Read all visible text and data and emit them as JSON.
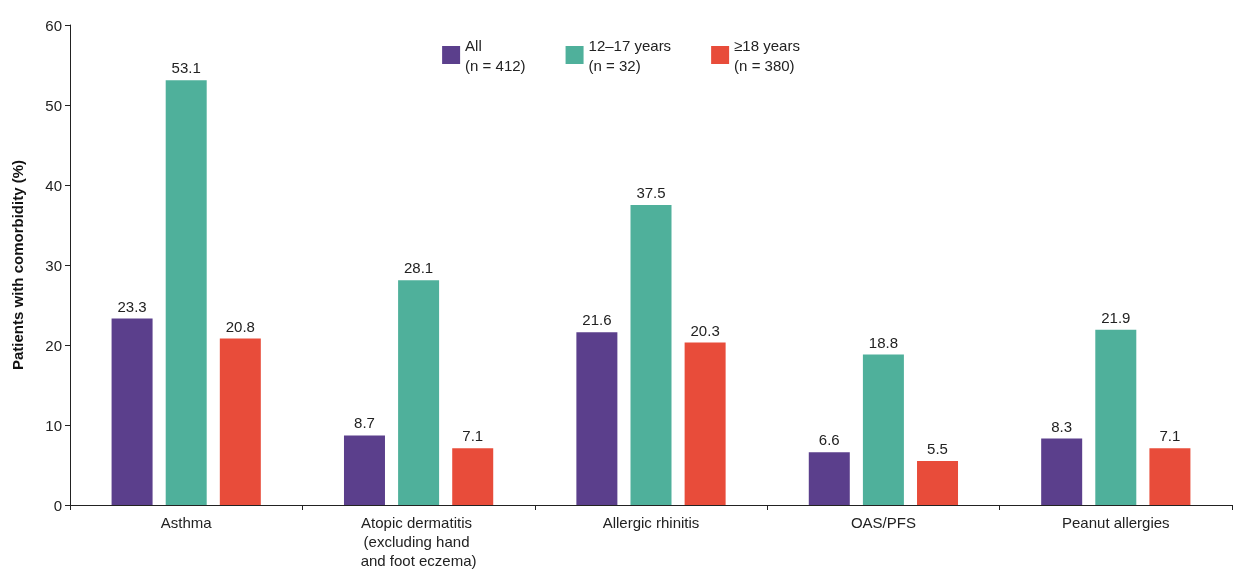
{
  "chart_data": {
    "type": "bar",
    "ylabel": "Patients with comorbidity (%)",
    "categories": [
      "Asthma",
      "Atopic dermatitis (excluding hand and foot eczema)",
      "Allergic rhinitis",
      "OAS/PFS",
      "Peanut allergies"
    ],
    "series": [
      {
        "name": "All\n(n = 412)",
        "color": "#5b3f8c",
        "values": [
          23.3,
          8.7,
          21.6,
          6.6,
          8.3
        ]
      },
      {
        "name": "12–17 years\n(n = 32)",
        "color": "#4fb09b",
        "values": [
          53.1,
          28.1,
          37.5,
          18.8,
          21.9
        ]
      },
      {
        "name": "≥18 years\n(n = 380)",
        "color": "#e84c3a",
        "values": [
          20.8,
          7.1,
          20.3,
          5.5,
          7.1
        ]
      }
    ],
    "ylim": [
      0,
      60
    ],
    "yticks": [
      0,
      10,
      20,
      30,
      40,
      50,
      60
    ],
    "grid": false,
    "legend": "top",
    "data_labels": true
  }
}
